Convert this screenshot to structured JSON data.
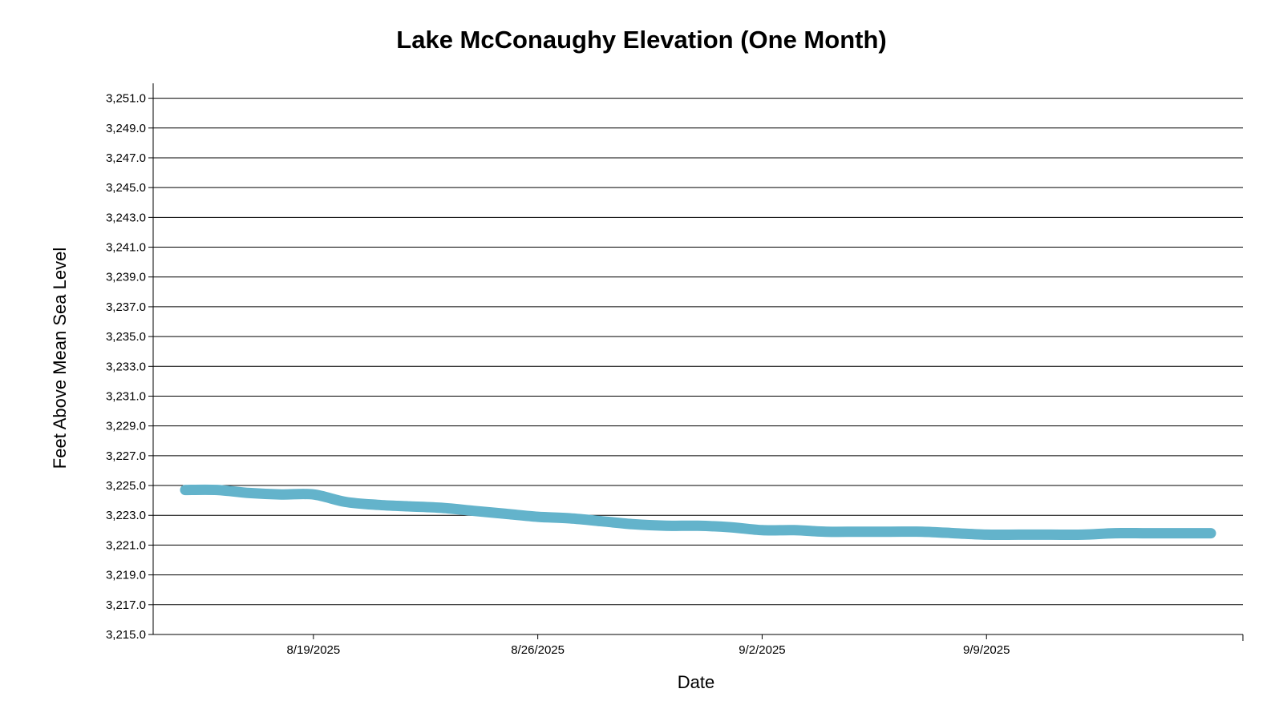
{
  "chart_data": {
    "type": "line",
    "title": "Lake McConaughy Elevation (One Month)",
    "xlabel": "Date",
    "ylabel": "Feet Above Mean Sea Level",
    "ylim": [
      3215.0,
      3252.0
    ],
    "xlim": [
      "2025-08-14",
      "2025-09-17"
    ],
    "y_ticks": [
      3215.0,
      3217.0,
      3219.0,
      3221.0,
      3223.0,
      3225.0,
      3227.0,
      3229.0,
      3231.0,
      3233.0,
      3235.0,
      3237.0,
      3239.0,
      3241.0,
      3243.0,
      3245.0,
      3247.0,
      3249.0,
      3251.0
    ],
    "y_tick_labels": [
      "3,215.0",
      "3,217.0",
      "3,219.0",
      "3,221.0",
      "3,223.0",
      "3,225.0",
      "3,227.0",
      "3,229.0",
      "3,231.0",
      "3,233.0",
      "3,235.0",
      "3,237.0",
      "3,239.0",
      "3,241.0",
      "3,243.0",
      "3,245.0",
      "3,247.0",
      "3,249.0",
      "3,251.0"
    ],
    "x_ticks": [
      "2025-08-19",
      "2025-08-26",
      "2025-09-02",
      "2025-09-09"
    ],
    "x_tick_labels": [
      "8/19/2025",
      "8/26/2025",
      "9/2/2025",
      "9/9/2025"
    ],
    "grid": true,
    "legend": "none",
    "series": [
      {
        "color": "#63b3cb",
        "x": [
          "2025-08-15",
          "2025-08-16",
          "2025-08-17",
          "2025-08-18",
          "2025-08-19",
          "2025-08-20",
          "2025-08-21",
          "2025-08-22",
          "2025-08-23",
          "2025-08-24",
          "2025-08-25",
          "2025-08-26",
          "2025-08-27",
          "2025-08-28",
          "2025-08-29",
          "2025-08-30",
          "2025-08-31",
          "2025-09-01",
          "2025-09-02",
          "2025-09-03",
          "2025-09-04",
          "2025-09-05",
          "2025-09-06",
          "2025-09-07",
          "2025-09-08",
          "2025-09-09",
          "2025-09-10",
          "2025-09-11",
          "2025-09-12",
          "2025-09-13",
          "2025-09-14",
          "2025-09-15",
          "2025-09-16"
        ],
        "y": [
          3224.7,
          3224.7,
          3224.5,
          3224.4,
          3224.4,
          3223.9,
          3223.7,
          3223.6,
          3223.5,
          3223.3,
          3223.1,
          3222.9,
          3222.8,
          3222.6,
          3222.4,
          3222.3,
          3222.3,
          3222.2,
          3222.0,
          3222.0,
          3221.9,
          3221.9,
          3221.9,
          3221.9,
          3221.8,
          3221.7,
          3221.7,
          3221.7,
          3221.7,
          3221.8,
          3221.8,
          3221.8,
          3221.8
        ]
      }
    ]
  }
}
